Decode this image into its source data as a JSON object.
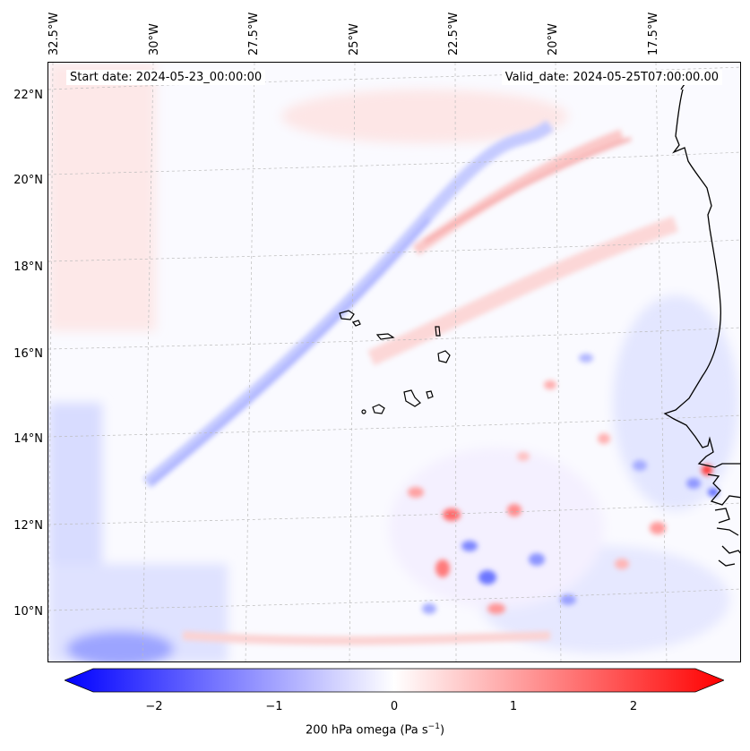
{
  "header": {
    "start_label": "Start date: 2024-05-23_00:00:00",
    "valid_label": "Valid_date: 2024-05-25T07:00:00.00"
  },
  "lon_labels": [
    "32.5°W",
    "30°W",
    "27.5°W",
    "25°W",
    "22.5°W",
    "20°W",
    "17.5°W"
  ],
  "lat_labels": [
    "22°N",
    "20°N",
    "18°N",
    "16°N",
    "14°N",
    "12°N",
    "10°N"
  ],
  "colorbar": {
    "ticks": [
      "−2",
      "−1",
      "0",
      "1",
      "2"
    ],
    "label_main": "200 hPa omega (Pa s",
    "label_sup": "−1",
    "label_end": ")",
    "min_color": "#0000ff",
    "mid_color": "#ffffff",
    "max_color": "#ff0000",
    "range": [
      -2.6,
      2.6
    ]
  },
  "colors": {
    "coastline": "#000000",
    "gridline": "#bbbbbb"
  }
}
